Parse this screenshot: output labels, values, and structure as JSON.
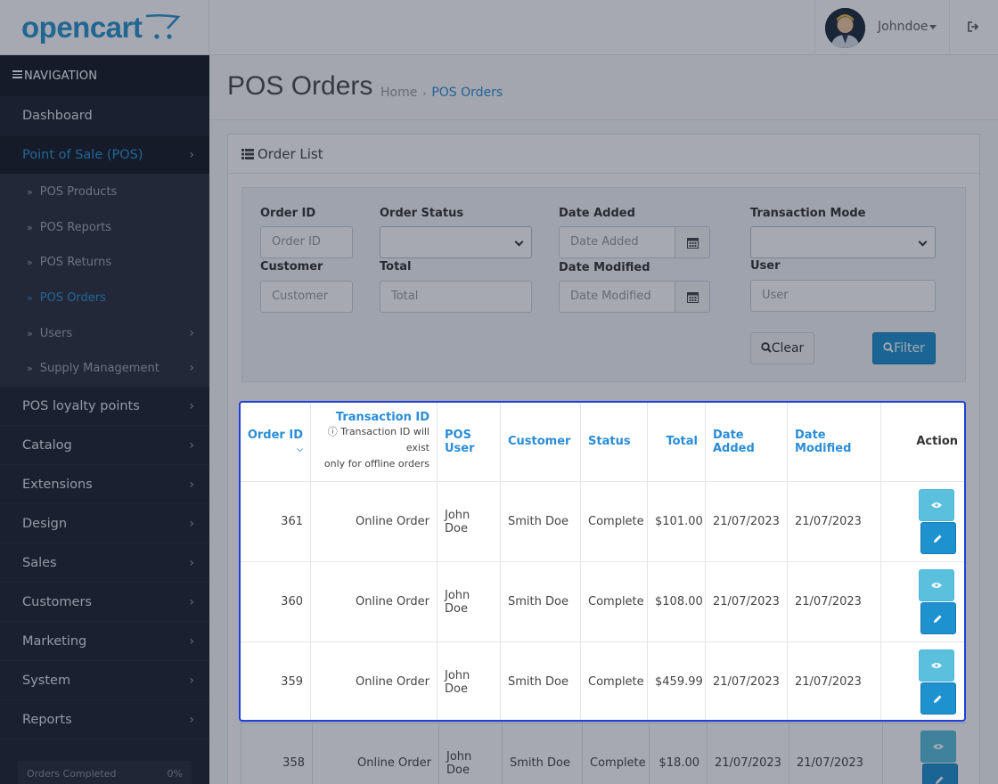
{
  "header": {
    "logo_text": "opencart",
    "username": "Johndoe"
  },
  "sidebar": {
    "heading": "NAVIGATION",
    "items": [
      {
        "label": "Dashboard"
      },
      {
        "label": "Point of Sale (POS)"
      },
      {
        "label": "POS Products"
      },
      {
        "label": "POS Reports"
      },
      {
        "label": "POS Returns"
      },
      {
        "label": "POS Orders"
      },
      {
        "label": "Users"
      },
      {
        "label": "Supply Management"
      },
      {
        "label": "POS loyalty points"
      },
      {
        "label": "Catalog"
      },
      {
        "label": "Extensions"
      },
      {
        "label": "Design"
      },
      {
        "label": "Sales"
      },
      {
        "label": "Customers"
      },
      {
        "label": "Marketing"
      },
      {
        "label": "System"
      },
      {
        "label": "Reports"
      }
    ],
    "stats": {
      "label": "Orders Completed",
      "value": "0%"
    }
  },
  "page": {
    "title": "POS Orders",
    "breadcrumb": [
      "Home",
      "POS Orders"
    ],
    "panel_title": "Order List"
  },
  "filter": {
    "order_id": {
      "label": "Order ID",
      "placeholder": "Order ID"
    },
    "order_status": {
      "label": "Order Status",
      "value": ""
    },
    "date_added": {
      "label": "Date Added",
      "placeholder": "Date Added"
    },
    "transaction_mode": {
      "label": "Transaction Mode",
      "value": ""
    },
    "customer": {
      "label": "Customer",
      "placeholder": "Customer"
    },
    "total": {
      "label": "Total",
      "placeholder": "Total"
    },
    "date_modified": {
      "label": "Date Modified",
      "placeholder": "Date Modified"
    },
    "user": {
      "label": "User",
      "placeholder": "User"
    },
    "clear_label": "Clear",
    "filter_label": "Filter"
  },
  "table": {
    "headers": {
      "order_id": "Order ID",
      "transaction_id": "Transaction ID",
      "transaction_note_1": "Transaction ID will exist",
      "transaction_note_2": "only for offline orders",
      "pos_user": "POS User",
      "customer": "Customer",
      "status": "Status",
      "total": "Total",
      "date_added": "Date Added",
      "date_modified": "Date Modified",
      "action": "Action"
    },
    "rows": [
      {
        "order_id": "361",
        "transaction_id": "Online Order",
        "pos_user": "John Doe",
        "customer": "Smith Doe",
        "status": "Complete",
        "total": "$101.00",
        "date_added": "21/07/2023",
        "date_modified": "21/07/2023"
      },
      {
        "order_id": "360",
        "transaction_id": "Online Order",
        "pos_user": "John Doe",
        "customer": "Smith Doe",
        "status": "Complete",
        "total": "$108.00",
        "date_added": "21/07/2023",
        "date_modified": "21/07/2023"
      },
      {
        "order_id": "359",
        "transaction_id": "Online Order",
        "pos_user": "John Doe",
        "customer": "Smith Doe",
        "status": "Complete",
        "total": "$459.99",
        "date_added": "21/07/2023",
        "date_modified": "21/07/2023"
      },
      {
        "order_id": "358",
        "transaction_id": "Online Order",
        "pos_user": "John Doe",
        "customer": "Smith Doe",
        "status": "Complete",
        "total": "$18.00",
        "date_added": "21/07/2023",
        "date_modified": "21/07/2023"
      }
    ]
  },
  "colors": {
    "accent": "#1e91cf",
    "highlight": "#1e3fdb",
    "sidebar": "#1e2330"
  },
  "icons": [
    "list-icon",
    "search-icon",
    "calendar-icon",
    "eye-icon",
    "pencil-icon",
    "logout-icon",
    "info-icon",
    "sort-desc-icon"
  ]
}
